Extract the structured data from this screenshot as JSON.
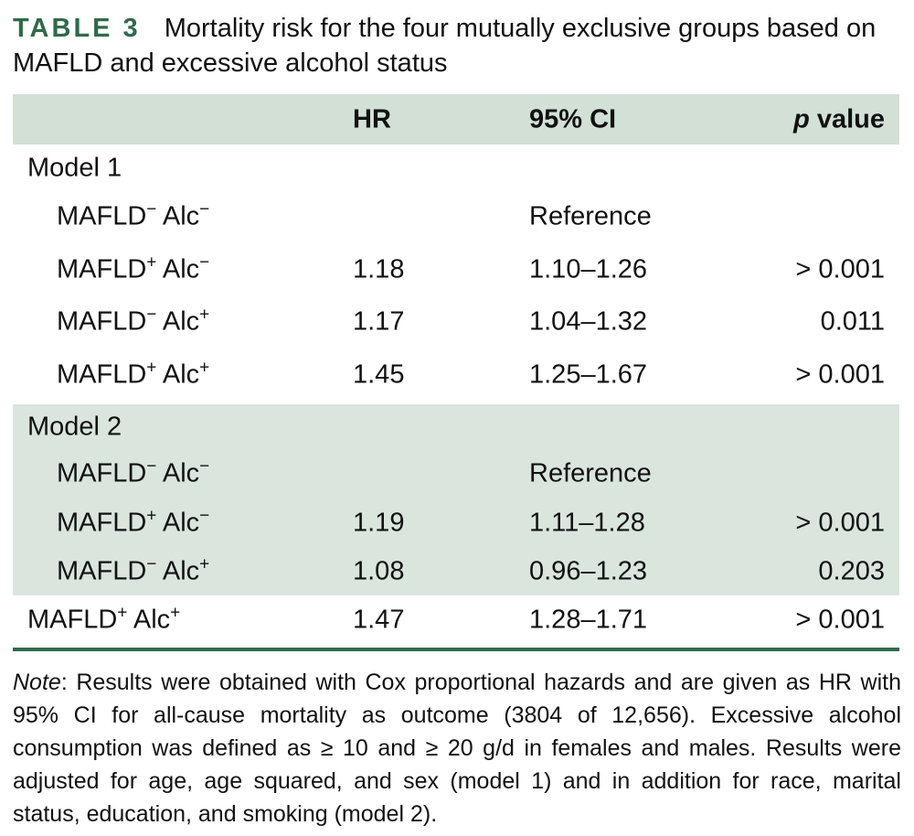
{
  "caption": {
    "label": "TABLE 3",
    "text": "Mortality risk for the four mutually exclusive groups based on MAFLD and excessive alcohol status"
  },
  "table": {
    "headers": {
      "group": "",
      "hr": "HR",
      "ci": "95% CI",
      "p_italic": "p",
      "p_rest": " value"
    },
    "model1": {
      "label": "Model 1",
      "rows": [
        {
          "mafld": "MAFLD",
          "mafld_sign": "−",
          "alc": "Alc",
          "alc_sign": "−",
          "hr": "",
          "ci": "Reference",
          "p": ""
        },
        {
          "mafld": "MAFLD",
          "mafld_sign": "+",
          "alc": "Alc",
          "alc_sign": "−",
          "hr": "1.18",
          "ci": "1.10–1.26",
          "p": "> 0.001"
        },
        {
          "mafld": "MAFLD",
          "mafld_sign": "−",
          "alc": "Alc",
          "alc_sign": "+",
          "hr": "1.17",
          "ci": "1.04–1.32",
          "p": "0.011"
        },
        {
          "mafld": "MAFLD",
          "mafld_sign": "+",
          "alc": "Alc",
          "alc_sign": "+",
          "hr": "1.45",
          "ci": "1.25–1.67",
          "p": "> 0.001"
        }
      ]
    },
    "model2": {
      "label": "Model 2",
      "rows": [
        {
          "mafld": "MAFLD",
          "mafld_sign": "−",
          "alc": "Alc",
          "alc_sign": "−",
          "hr": "",
          "ci": "Reference",
          "p": ""
        },
        {
          "mafld": "MAFLD",
          "mafld_sign": "+",
          "alc": "Alc",
          "alc_sign": "−",
          "hr": "1.19",
          "ci": "1.11–1.28",
          "p": "> 0.001"
        },
        {
          "mafld": "MAFLD",
          "mafld_sign": "−",
          "alc": "Alc",
          "alc_sign": "+",
          "hr": "1.08",
          "ci": "0.96–1.23",
          "p": "0.203"
        },
        {
          "mafld": "MAFLD",
          "mafld_sign": "+",
          "alc": "Alc",
          "alc_sign": "+",
          "hr": "1.47",
          "ci": "1.28–1.71",
          "p": "> 0.001"
        }
      ]
    }
  },
  "note": {
    "label": "Note",
    "text": ": Results were obtained with Cox proportional hazards and are given as HR with 95% CI for all-cause mortality as outcome (3804 of 12,656). Excessive alcohol consumption was defined as ≥ 10 and ≥ 20 g/d in females and males. Results were adjusted for age, age squared, and sex (model 1) and in addition for race, marital status, education, and smoking (model 2)."
  },
  "colors": {
    "accent": "#2e6b4a",
    "header_bg": "#d2e0d6",
    "shaded_bg": "#d9e5dd"
  }
}
